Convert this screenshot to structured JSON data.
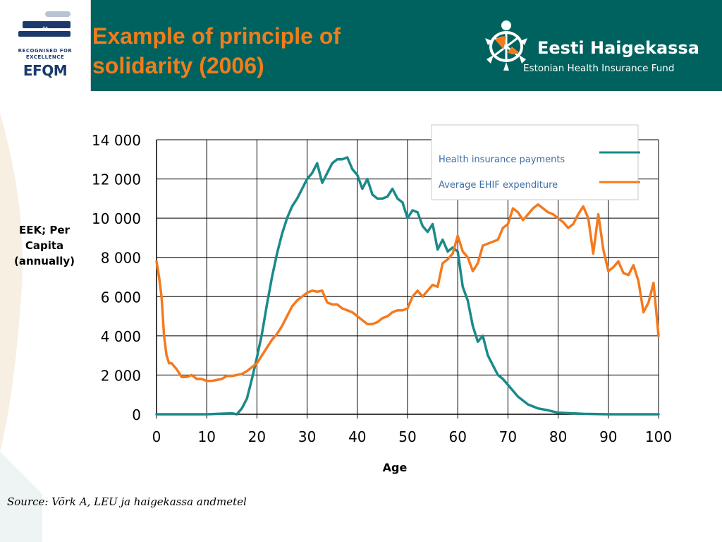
{
  "header": {
    "title_line1": "Example of principle of",
    "title_line2": "solidarity (2006)",
    "efqm_tag": "4*",
    "efqm_line1": "RECOGNISED FOR",
    "efqm_line2": "EXCELLENCE",
    "efqm_word": "EFQM",
    "brand_name": "Eesti Haigekassa",
    "brand_subtitle": "Estonian Health Insurance Fund"
  },
  "colors": {
    "header_bg": "#00625f",
    "title": "#f07d1a",
    "payments": "#1a8a8a",
    "expenditure": "#f47a1f"
  },
  "source": "Source: Võrk A, LEU ja haigekassa andmetel",
  "chart_data": {
    "type": "line",
    "title": "",
    "xlabel": "Age",
    "ylabel": "EEK; Per Capita (annually)",
    "xlim": [
      0,
      100
    ],
    "ylim": [
      0,
      14000
    ],
    "x_ticks": [
      "0",
      "10",
      "20",
      "30",
      "40",
      "50",
      "60",
      "70",
      "80",
      "90",
      "100"
    ],
    "y_ticks": [
      "0",
      "2 000",
      "4 000",
      "6 000",
      "8 000",
      "10 000",
      "12 000",
      "14 000"
    ],
    "grid": true,
    "legend_position": "top-right",
    "series": [
      {
        "name": "Health insurance payments",
        "color": "#1a8a8a",
        "points": [
          [
            0,
            0
          ],
          [
            10,
            0
          ],
          [
            15,
            50
          ],
          [
            16,
            0
          ],
          [
            17,
            300
          ],
          [
            18,
            800
          ],
          [
            19,
            1800
          ],
          [
            20,
            2900
          ],
          [
            21,
            4100
          ],
          [
            22,
            5600
          ],
          [
            23,
            7000
          ],
          [
            24,
            8200
          ],
          [
            25,
            9200
          ],
          [
            26,
            10000
          ],
          [
            27,
            10600
          ],
          [
            28,
            11000
          ],
          [
            29,
            11500
          ],
          [
            30,
            12000
          ],
          [
            31,
            12300
          ],
          [
            32,
            12800
          ],
          [
            33,
            11800
          ],
          [
            34,
            12300
          ],
          [
            35,
            12800
          ],
          [
            36,
            13000
          ],
          [
            37,
            13000
          ],
          [
            38,
            13100
          ],
          [
            39,
            12500
          ],
          [
            40,
            12200
          ],
          [
            41,
            11500
          ],
          [
            42,
            12000
          ],
          [
            43,
            11200
          ],
          [
            44,
            11000
          ],
          [
            45,
            11000
          ],
          [
            46,
            11100
          ],
          [
            47,
            11500
          ],
          [
            48,
            11000
          ],
          [
            49,
            10800
          ],
          [
            50,
            10000
          ],
          [
            51,
            10400
          ],
          [
            52,
            10300
          ],
          [
            53,
            9600
          ],
          [
            54,
            9300
          ],
          [
            55,
            9700
          ],
          [
            56,
            8400
          ],
          [
            57,
            8900
          ],
          [
            58,
            8300
          ],
          [
            59,
            8500
          ],
          [
            60,
            8300
          ],
          [
            61,
            6500
          ],
          [
            62,
            5800
          ],
          [
            63,
            4500
          ],
          [
            64,
            3700
          ],
          [
            65,
            4000
          ],
          [
            66,
            3000
          ],
          [
            67,
            2500
          ],
          [
            68,
            2000
          ],
          [
            69,
            1800
          ],
          [
            70,
            1500
          ],
          [
            72,
            900
          ],
          [
            74,
            500
          ],
          [
            76,
            300
          ],
          [
            78,
            200
          ],
          [
            80,
            80
          ],
          [
            85,
            20
          ],
          [
            88,
            10
          ],
          [
            90,
            0
          ],
          [
            100,
            0
          ]
        ]
      },
      {
        "name": "Average EHIF expenditure",
        "color": "#f47a1f",
        "points": [
          [
            0,
            7800
          ],
          [
            0.5,
            7000
          ],
          [
            1,
            6000
          ],
          [
            1.5,
            4000
          ],
          [
            2,
            3000
          ],
          [
            2.5,
            2600
          ],
          [
            3,
            2600
          ],
          [
            4,
            2300
          ],
          [
            5,
            1900
          ],
          [
            6,
            1900
          ],
          [
            7,
            2000
          ],
          [
            8,
            1800
          ],
          [
            9,
            1800
          ],
          [
            10,
            1700
          ],
          [
            11,
            1700
          ],
          [
            12,
            1750
          ],
          [
            13,
            1800
          ],
          [
            14,
            1950
          ],
          [
            15,
            1950
          ],
          [
            16,
            2000
          ],
          [
            17,
            2050
          ],
          [
            18,
            2200
          ],
          [
            19,
            2400
          ],
          [
            20,
            2600
          ],
          [
            21,
            3000
          ],
          [
            22,
            3400
          ],
          [
            23,
            3800
          ],
          [
            24,
            4100
          ],
          [
            25,
            4500
          ],
          [
            26,
            5000
          ],
          [
            27,
            5500
          ],
          [
            28,
            5800
          ],
          [
            29,
            6000
          ],
          [
            30,
            6200
          ],
          [
            31,
            6300
          ],
          [
            32,
            6250
          ],
          [
            33,
            6300
          ],
          [
            34,
            5700
          ],
          [
            35,
            5600
          ],
          [
            36,
            5600
          ],
          [
            37,
            5400
          ],
          [
            38,
            5300
          ],
          [
            39,
            5200
          ],
          [
            40,
            5000
          ],
          [
            41,
            4800
          ],
          [
            42,
            4600
          ],
          [
            43,
            4600
          ],
          [
            44,
            4700
          ],
          [
            45,
            4900
          ],
          [
            46,
            5000
          ],
          [
            47,
            5200
          ],
          [
            48,
            5300
          ],
          [
            49,
            5300
          ],
          [
            50,
            5400
          ],
          [
            51,
            6000
          ],
          [
            52,
            6300
          ],
          [
            53,
            6000
          ],
          [
            54,
            6300
          ],
          [
            55,
            6600
          ],
          [
            56,
            6500
          ],
          [
            57,
            7700
          ],
          [
            58,
            7900
          ],
          [
            59,
            8200
          ],
          [
            60,
            9100
          ],
          [
            61,
            8300
          ],
          [
            62,
            8000
          ],
          [
            63,
            7300
          ],
          [
            64,
            7700
          ],
          [
            65,
            8600
          ],
          [
            66,
            8700
          ],
          [
            67,
            8800
          ],
          [
            68,
            8900
          ],
          [
            69,
            9500
          ],
          [
            70,
            9700
          ],
          [
            71,
            10500
          ],
          [
            72,
            10300
          ],
          [
            73,
            9900
          ],
          [
            74,
            10200
          ],
          [
            75,
            10500
          ],
          [
            76,
            10700
          ],
          [
            77,
            10500
          ],
          [
            78,
            10300
          ],
          [
            79,
            10200
          ],
          [
            80,
            10000
          ],
          [
            81,
            9800
          ],
          [
            82,
            9500
          ],
          [
            83,
            9700
          ],
          [
            84,
            10200
          ],
          [
            85,
            10600
          ],
          [
            86,
            10000
          ],
          [
            87,
            8200
          ],
          [
            88,
            10200
          ],
          [
            89,
            8400
          ],
          [
            90,
            7300
          ],
          [
            91,
            7500
          ],
          [
            92,
            7800
          ],
          [
            93,
            7200
          ],
          [
            94,
            7100
          ],
          [
            95,
            7600
          ],
          [
            96,
            6800
          ],
          [
            97,
            5200
          ],
          [
            98,
            5700
          ],
          [
            99,
            6700
          ],
          [
            100,
            4000
          ]
        ]
      }
    ]
  }
}
